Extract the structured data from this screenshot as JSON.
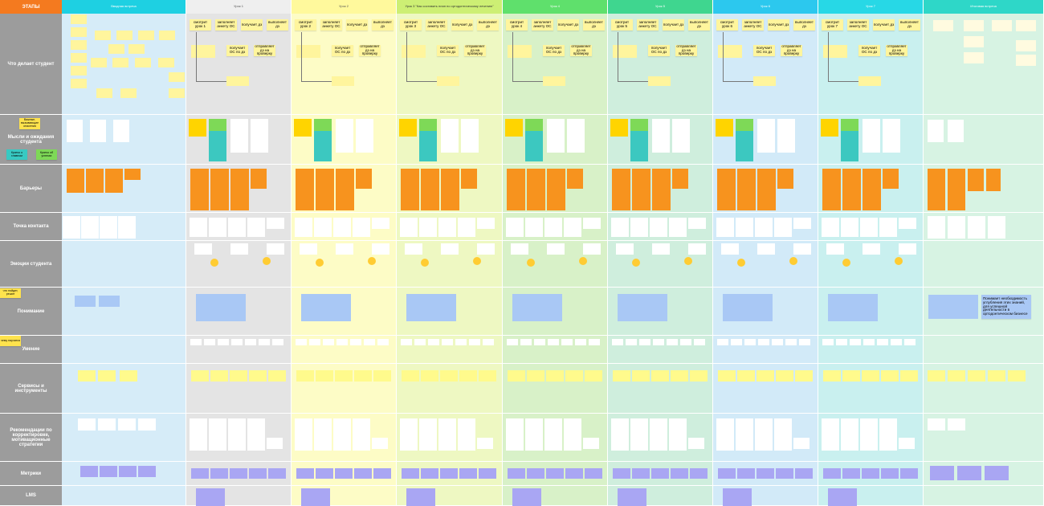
{
  "header": {
    "stages_label": "ЭТАПЫ",
    "columns": [
      "Вводная встреча",
      "Урок 1",
      "Урок 2",
      "Урок 3 \"Как составить план по ортодонтическому лечению\"",
      "Урок 4",
      "Урок 5",
      "Урок 6",
      "Урок 7",
      "Итоговая встреча"
    ]
  },
  "rows": [
    "Что делает студент",
    "Мысли и ожидания студента",
    "Барьеры",
    "Точка контакта",
    "Эмоции студента",
    "Понимание",
    "Умение",
    "Сервисы и инструменты",
    "Рекомендации по корректировке, мотивационные стратегии",
    "Метрики",
    "LMS"
  ],
  "legend": [
    "Важные, вызывающие опасения",
    "Кратко о главном",
    "Кратко об успехах",
    "что пойдет, решит",
    "чему научатся"
  ],
  "lessons": [
    {
      "steps": [
        "смотрит урок 1",
        "заполняет анкету ОС",
        "получает дз",
        "выполняет дз",
        "получает ОС по дз",
        "отправляет дз на проверку"
      ]
    },
    {
      "steps": [
        "смотрит урок 2",
        "заполняет анкету ОС",
        "получает дз",
        "выполняет дз",
        "получает ОС по дз",
        "отправляет дз на проверку"
      ]
    },
    {
      "steps": [
        "смотрит урок 3",
        "заполняет анкету ОС",
        "получает дз",
        "выполняет дз",
        "получает ОС по дз",
        "отправляет дз на проверку"
      ]
    },
    {
      "steps": [
        "смотрит урок 4",
        "заполняет анкету ОС",
        "получает дз",
        "выполняет дз",
        "получает ОС по дз",
        "отправляет дз на проверку"
      ]
    },
    {
      "steps": [
        "смотрит урок 5",
        "заполняет анкету ОС",
        "получает дз",
        "выполняет дз",
        "получает ОС по дз",
        "отправляет дз на проверку"
      ]
    },
    {
      "steps": [
        "смотрит урок 6",
        "заполняет анкету ОС",
        "получает дз",
        "выполняет дз",
        "получает ОС по дз",
        "отправляет дз на проверку"
      ]
    },
    {
      "steps": [
        "смотрит урок 7",
        "заполняет анкету ОС",
        "получает дз",
        "выполняет дз",
        "получает ОС по дз",
        "отправляет дз на проверку"
      ]
    }
  ],
  "final_understanding": "Понимает необходимость углубления этих знаний, для успешной деятельности в ортодонтическом бизнесе"
}
